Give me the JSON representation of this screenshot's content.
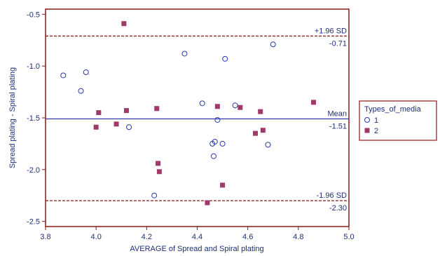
{
  "chart_data": {
    "type": "scatter",
    "xlabel": "AVERAGE of Spread and Spiral plating",
    "ylabel": "Spread plating - Spiral plating",
    "xlim": [
      3.8,
      5.0
    ],
    "ylim": [
      -2.55,
      -0.45
    ],
    "x_ticks": [
      "3.8",
      "4.0",
      "4.2",
      "4.4",
      "4.6",
      "4.8",
      "5.0"
    ],
    "y_ticks": [
      "-0.5",
      "-1.0",
      "-1.5",
      "-2.0",
      "-2.5"
    ],
    "x_tick_values": [
      3.8,
      4.0,
      4.2,
      4.4,
      4.6,
      4.8,
      5.0
    ],
    "y_tick_values": [
      -0.5,
      -1.0,
      -1.5,
      -2.0,
      -2.5
    ],
    "grid": false,
    "legend_position": "right",
    "legend_title": "Types_of_media",
    "reference_lines": [
      {
        "name": "+1.96 SD",
        "value_label": "-0.71",
        "y": -0.71,
        "style": "dashed",
        "color": "#8b1a1a"
      },
      {
        "name": "Mean",
        "value_label": "-1.51",
        "y": -1.51,
        "style": "solid",
        "color": "#2a3aa8"
      },
      {
        "name": "-1.96 SD",
        "value_label": "-2.30",
        "y": -2.3,
        "style": "dashed",
        "color": "#8b1a1a"
      }
    ],
    "series": [
      {
        "name": "1",
        "marker": "circle",
        "color": "#2a3aa8",
        "points": [
          {
            "x": 3.87,
            "y": -1.09
          },
          {
            "x": 3.94,
            "y": -1.24
          },
          {
            "x": 3.96,
            "y": -1.06
          },
          {
            "x": 4.13,
            "y": -1.59
          },
          {
            "x": 4.23,
            "y": -2.25
          },
          {
            "x": 4.35,
            "y": -0.88
          },
          {
            "x": 4.42,
            "y": -1.36
          },
          {
            "x": 4.46,
            "y": -1.75
          },
          {
            "x": 4.465,
            "y": -1.87
          },
          {
            "x": 4.47,
            "y": -1.73
          },
          {
            "x": 4.48,
            "y": -1.52
          },
          {
            "x": 4.5,
            "y": -1.75
          },
          {
            "x": 4.51,
            "y": -0.93
          },
          {
            "x": 4.55,
            "y": -1.38
          },
          {
            "x": 4.68,
            "y": -1.76
          },
          {
            "x": 4.7,
            "y": -0.79
          }
        ]
      },
      {
        "name": "2",
        "marker": "square",
        "color": "#a03a6a",
        "points": [
          {
            "x": 4.0,
            "y": -1.59
          },
          {
            "x": 4.01,
            "y": -1.45
          },
          {
            "x": 4.08,
            "y": -1.56
          },
          {
            "x": 4.11,
            "y": -0.59
          },
          {
            "x": 4.12,
            "y": -1.43
          },
          {
            "x": 4.24,
            "y": -1.41
          },
          {
            "x": 4.245,
            "y": -1.94
          },
          {
            "x": 4.25,
            "y": -2.02
          },
          {
            "x": 4.44,
            "y": -2.32
          },
          {
            "x": 4.48,
            "y": -1.39
          },
          {
            "x": 4.5,
            "y": -2.15
          },
          {
            "x": 4.57,
            "y": -1.4
          },
          {
            "x": 4.63,
            "y": -1.65
          },
          {
            "x": 4.65,
            "y": -1.44
          },
          {
            "x": 4.66,
            "y": -1.62
          },
          {
            "x": 4.86,
            "y": -1.35
          }
        ]
      }
    ]
  }
}
